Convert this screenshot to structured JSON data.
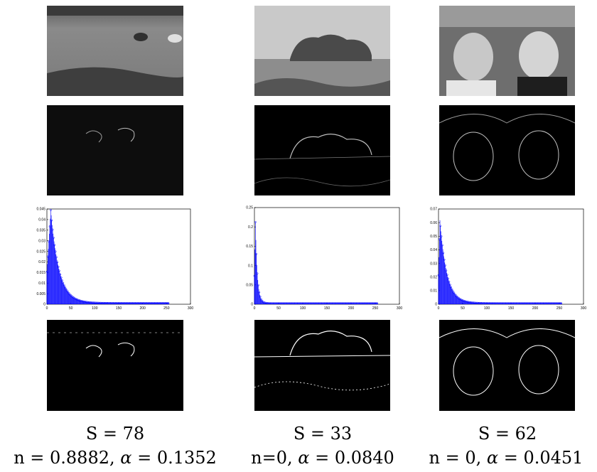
{
  "figure": {
    "columns": [
      {
        "id": "horses",
        "row_images": [
          "grayscale-photo-horses",
          "gradient-magnitude-horses",
          "histogram-horses",
          "binary-edges-horses"
        ],
        "caption_s": "S = 78",
        "caption_n_prefix": "n = 0.8882, ",
        "caption_alpha_value": " = 0.1352",
        "hist": {
          "type": "histogram-with-points",
          "xlim": [
            0,
            300
          ],
          "ylim": [
            0,
            0.045
          ],
          "xticks": [
            "0",
            "50",
            "100",
            "150",
            "200",
            "250",
            "300"
          ],
          "yticks": [
            "0",
            "0.005",
            "0.01",
            "0.015",
            "0.02",
            "0.025",
            "0.03",
            "0.035",
            "0.04",
            "0.045"
          ],
          "peak_x": 8,
          "peak_y": 0.044,
          "decay": 17,
          "color": "#0000ff"
        }
      },
      {
        "id": "island",
        "row_images": [
          "grayscale-photo-island",
          "gradient-magnitude-island",
          "histogram-island",
          "binary-edges-island"
        ],
        "caption_s": "S = 33",
        "caption_n_prefix": "n=0, ",
        "caption_alpha_value": " = 0.0840",
        "hist": {
          "type": "histogram-with-points",
          "xlim": [
            0,
            300
          ],
          "ylim": [
            0,
            0.25
          ],
          "xticks": [
            "0",
            "50",
            "100",
            "150",
            "200",
            "250",
            "300"
          ],
          "yticks": [
            "0",
            "0.05",
            "0.1",
            "0.15",
            "0.2",
            "0.25"
          ],
          "peak_x": 2,
          "peak_y": 0.21,
          "decay": 4,
          "color": "#0000ff"
        }
      },
      {
        "id": "women",
        "row_images": [
          "grayscale-photo-women",
          "gradient-magnitude-women",
          "histogram-women",
          "binary-edges-women"
        ],
        "caption_s": "S = 62",
        "caption_n_prefix": "n = 0, ",
        "caption_alpha_value": " = 0.0451",
        "hist": {
          "type": "histogram-with-points",
          "xlim": [
            0,
            300
          ],
          "ylim": [
            0,
            0.07
          ],
          "xticks": [
            "0",
            "50",
            "100",
            "150",
            "200",
            "250",
            "300"
          ],
          "yticks": [
            "0",
            "0.01",
            "0.02",
            "0.03",
            "0.04",
            "0.05",
            "0.06",
            "0.07"
          ],
          "peak_x": 3,
          "peak_y": 0.061,
          "decay": 14,
          "color": "#0000ff"
        }
      }
    ],
    "alpha_symbol": "α"
  }
}
